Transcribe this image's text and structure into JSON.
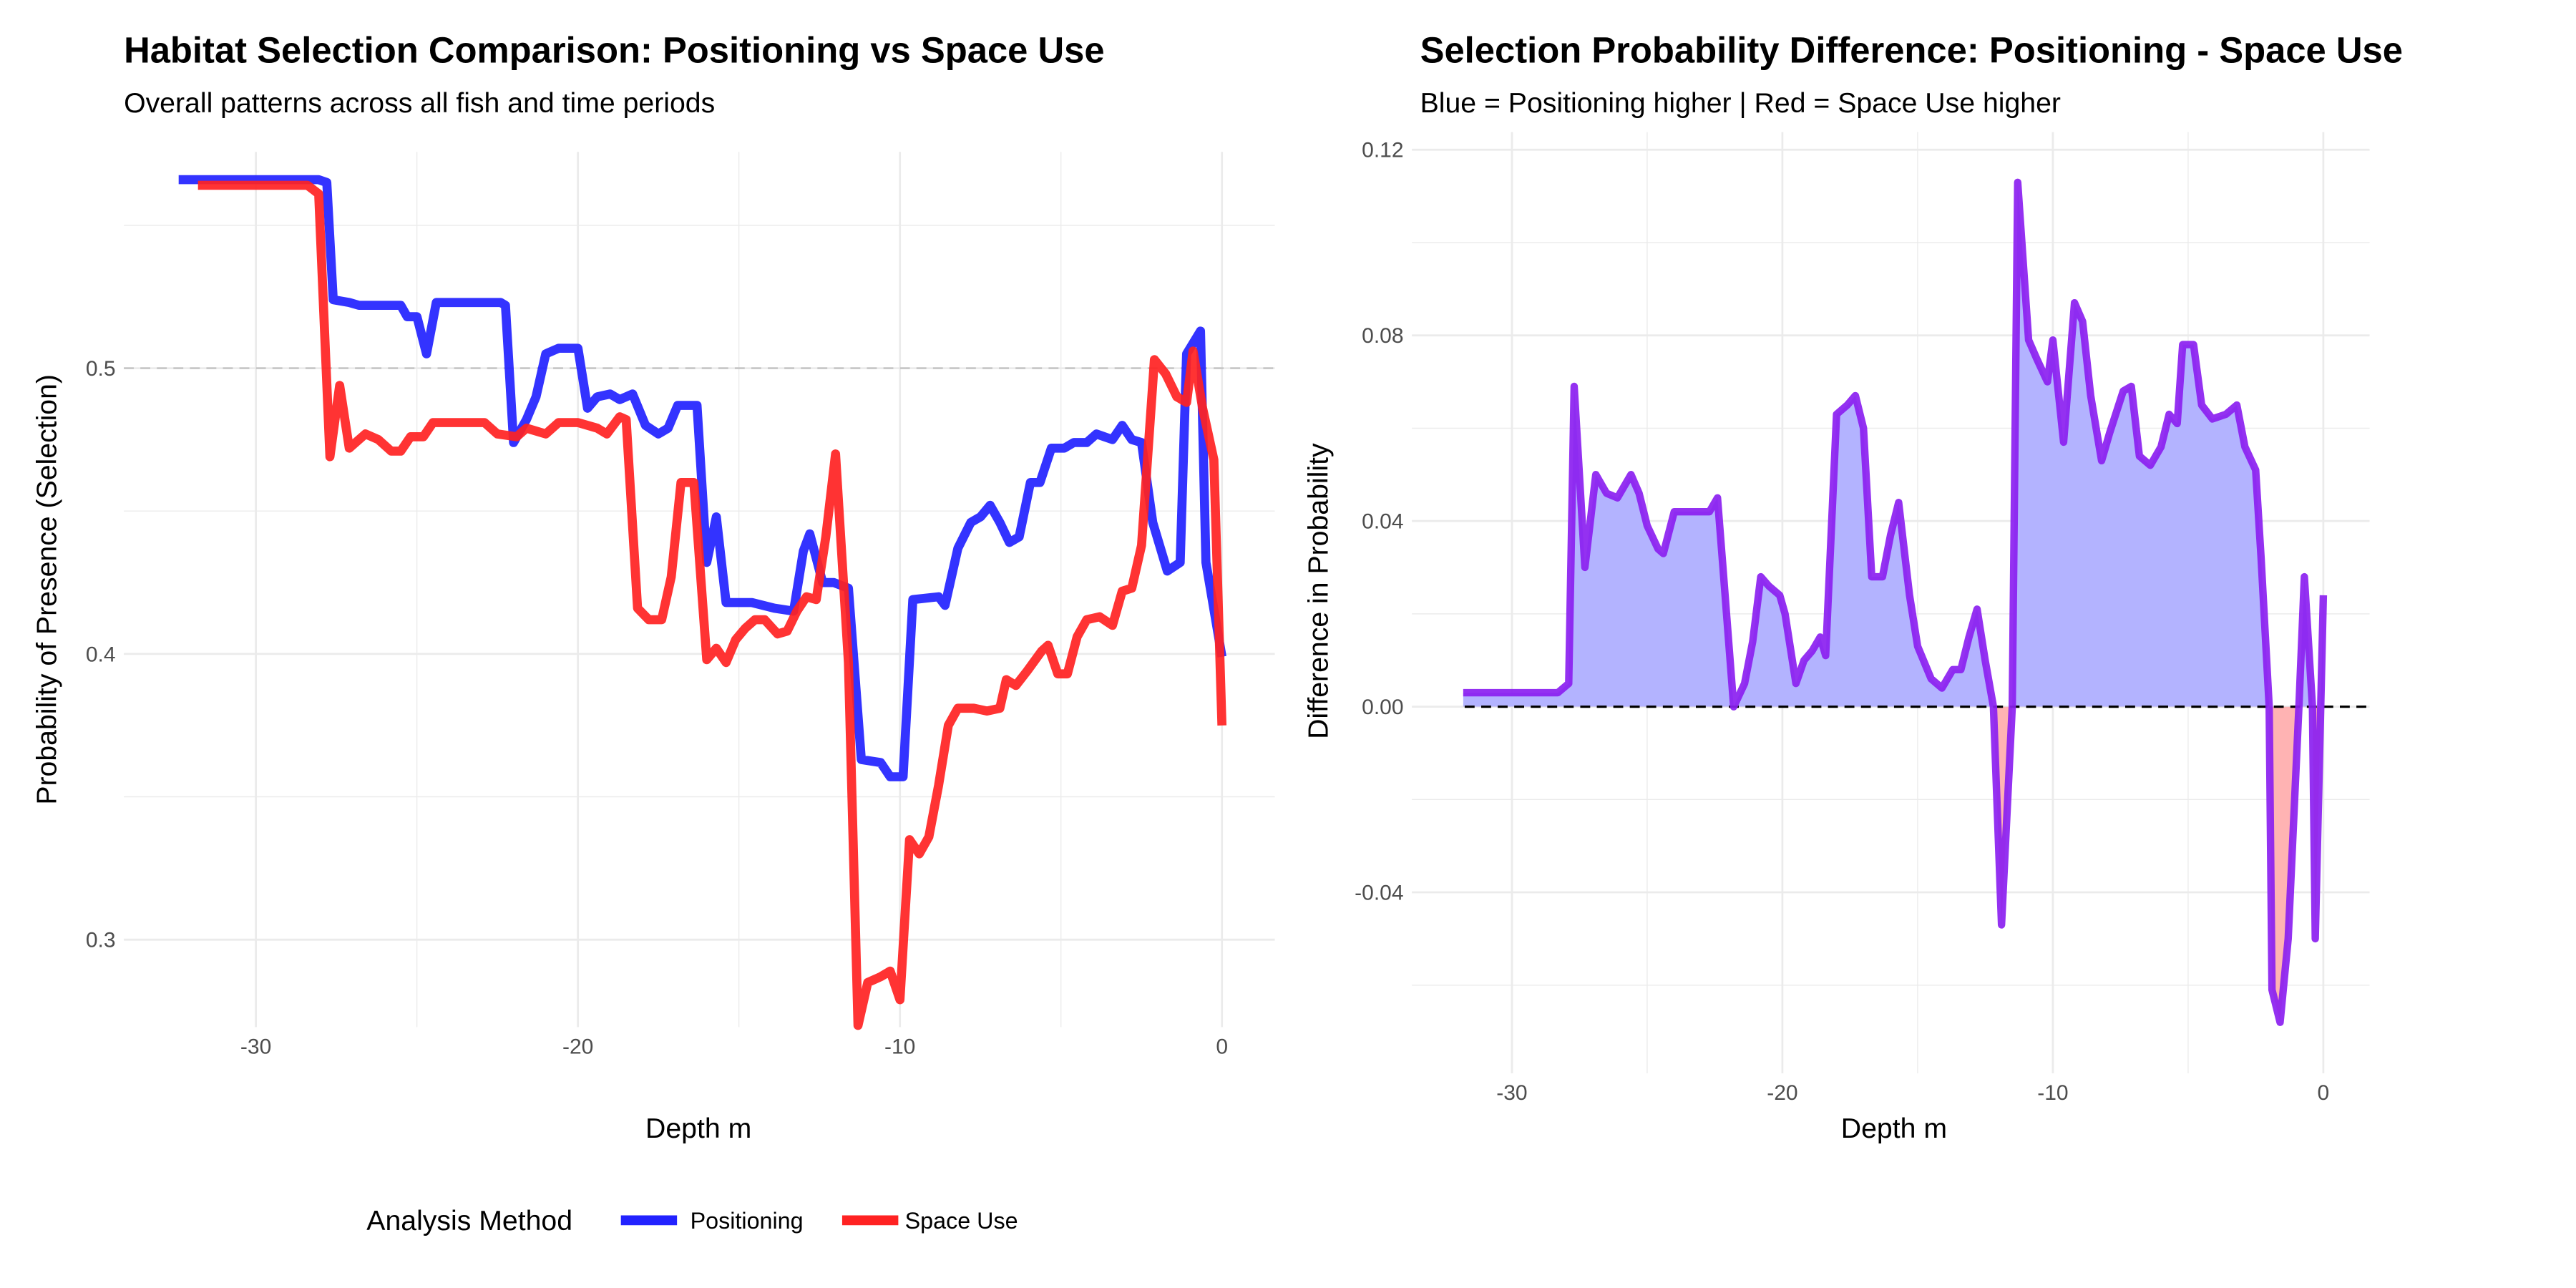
{
  "colors": {
    "positioning": "#2222ff",
    "space_use": "#ff2222",
    "diff_line": "#8b1ff0",
    "fill_pos": "#b3b3ff",
    "fill_neg": "#ffb3b3",
    "grid": "#ebebeb"
  },
  "chart_data": [
    {
      "type": "line",
      "title": "Habitat Selection Comparison: Positioning vs Space Use",
      "subtitle": "Overall patterns across all fish and time periods",
      "xlabel": "Depth m",
      "ylabel": "Probability of Presence (Selection)",
      "xlim": [
        -34.1,
        1.64
      ],
      "ylim": [
        0.2694,
        0.5757
      ],
      "xticks": [
        -30,
        -20,
        -10,
        0
      ],
      "xtick_labels": [
        "-30",
        "-20",
        "-10",
        "0"
      ],
      "yticks": [
        0.3,
        0.4,
        0.5
      ],
      "ytick_labels": [
        "0.3",
        "0.4",
        "0.5"
      ],
      "reference_line": 0.5,
      "legend": {
        "title": "Analysis Method",
        "position": "bottom",
        "entries": [
          "Positioning",
          "Space Use"
        ]
      },
      "series": [
        {
          "name": "Positioning",
          "points": [
            [
              -32.4,
              0.566
            ],
            [
              -28.05,
              0.566
            ],
            [
              -27.8,
              0.565
            ],
            [
              -27.6,
              0.524
            ],
            [
              -27.1,
              0.523
            ],
            [
              -26.8,
              0.522
            ],
            [
              -26.05,
              0.522
            ],
            [
              -25.5,
              0.522
            ],
            [
              -25.3,
              0.518
            ],
            [
              -25.0,
              0.518
            ],
            [
              -24.7,
              0.505
            ],
            [
              -24.4,
              0.523
            ],
            [
              -22.4,
              0.523
            ],
            [
              -22.25,
              0.522
            ],
            [
              -22.0,
              0.474
            ],
            [
              -21.6,
              0.482
            ],
            [
              -21.3,
              0.49
            ],
            [
              -21.0,
              0.505
            ],
            [
              -20.6,
              0.507
            ],
            [
              -20.0,
              0.507
            ],
            [
              -19.7,
              0.486
            ],
            [
              -19.4,
              0.49
            ],
            [
              -19.0,
              0.491
            ],
            [
              -18.7,
              0.489
            ],
            [
              -18.3,
              0.491
            ],
            [
              -17.9,
              0.48
            ],
            [
              -17.5,
              0.477
            ],
            [
              -17.2,
              0.479
            ],
            [
              -16.9,
              0.487
            ],
            [
              -16.3,
              0.487
            ],
            [
              -16.0,
              0.432
            ],
            [
              -15.7,
              0.448
            ],
            [
              -15.4,
              0.418
            ],
            [
              -14.6,
              0.418
            ],
            [
              -13.9,
              0.416
            ],
            [
              -13.3,
              0.415
            ],
            [
              -13.0,
              0.436
            ],
            [
              -12.8,
              0.442
            ],
            [
              -12.4,
              0.425
            ],
            [
              -12.05,
              0.425
            ],
            [
              -11.6,
              0.423
            ],
            [
              -11.2,
              0.363
            ],
            [
              -10.6,
              0.362
            ],
            [
              -10.3,
              0.357
            ],
            [
              -9.9,
              0.357
            ],
            [
              -9.6,
              0.419
            ],
            [
              -8.8,
              0.42
            ],
            [
              -8.6,
              0.417
            ],
            [
              -8.2,
              0.437
            ],
            [
              -7.8,
              0.446
            ],
            [
              -7.5,
              0.448
            ],
            [
              -7.2,
              0.452
            ],
            [
              -6.9,
              0.446
            ],
            [
              -6.6,
              0.439
            ],
            [
              -6.3,
              0.441
            ],
            [
              -5.95,
              0.46
            ],
            [
              -5.65,
              0.46
            ],
            [
              -5.3,
              0.472
            ],
            [
              -4.9,
              0.472
            ],
            [
              -4.6,
              0.474
            ],
            [
              -4.2,
              0.474
            ],
            [
              -3.9,
              0.477
            ],
            [
              -3.4,
              0.475
            ],
            [
              -3.1,
              0.48
            ],
            [
              -2.8,
              0.475
            ],
            [
              -2.5,
              0.474
            ],
            [
              -2.15,
              0.446
            ],
            [
              -1.7,
              0.429
            ],
            [
              -1.3,
              0.432
            ],
            [
              -1.1,
              0.505
            ],
            [
              -0.67,
              0.513
            ],
            [
              -0.5,
              0.432
            ],
            [
              0,
              0.399
            ]
          ]
        },
        {
          "name": "Space Use",
          "points": [
            [
              -31.8,
              0.564
            ],
            [
              -28.4,
              0.564
            ],
            [
              -28.05,
              0.561
            ],
            [
              -27.7,
              0.469
            ],
            [
              -27.4,
              0.494
            ],
            [
              -27.1,
              0.472
            ],
            [
              -26.6,
              0.477
            ],
            [
              -26.2,
              0.475
            ],
            [
              -25.8,
              0.471
            ],
            [
              -25.5,
              0.471
            ],
            [
              -25.2,
              0.476
            ],
            [
              -24.8,
              0.476
            ],
            [
              -24.5,
              0.481
            ],
            [
              -22.9,
              0.481
            ],
            [
              -22.5,
              0.477
            ],
            [
              -21.9,
              0.476
            ],
            [
              -21.6,
              0.479
            ],
            [
              -21.0,
              0.477
            ],
            [
              -20.6,
              0.481
            ],
            [
              -20.0,
              0.481
            ],
            [
              -19.4,
              0.479
            ],
            [
              -19.1,
              0.477
            ],
            [
              -18.7,
              0.483
            ],
            [
              -18.5,
              0.482
            ],
            [
              -18.15,
              0.416
            ],
            [
              -17.8,
              0.412
            ],
            [
              -17.4,
              0.412
            ],
            [
              -17.1,
              0.427
            ],
            [
              -16.8,
              0.46
            ],
            [
              -16.4,
              0.46
            ],
            [
              -16.0,
              0.398
            ],
            [
              -15.7,
              0.402
            ],
            [
              -15.4,
              0.397
            ],
            [
              -15.1,
              0.405
            ],
            [
              -14.8,
              0.409
            ],
            [
              -14.5,
              0.412
            ],
            [
              -14.2,
              0.412
            ],
            [
              -13.8,
              0.407
            ],
            [
              -13.5,
              0.408
            ],
            [
              -13.2,
              0.415
            ],
            [
              -12.9,
              0.42
            ],
            [
              -12.6,
              0.419
            ],
            [
              -12.3,
              0.441
            ],
            [
              -12.0,
              0.47
            ],
            [
              -11.6,
              0.397
            ],
            [
              -11.3,
              0.27
            ],
            [
              -11.0,
              0.285
            ],
            [
              -10.6,
              0.287
            ],
            [
              -10.3,
              0.289
            ],
            [
              -10.0,
              0.279
            ],
            [
              -9.7,
              0.335
            ],
            [
              -9.4,
              0.33
            ],
            [
              -9.1,
              0.336
            ],
            [
              -8.8,
              0.354
            ],
            [
              -8.5,
              0.375
            ],
            [
              -8.2,
              0.381
            ],
            [
              -7.7,
              0.381
            ],
            [
              -7.3,
              0.38
            ],
            [
              -6.9,
              0.381
            ],
            [
              -6.7,
              0.391
            ],
            [
              -6.4,
              0.389
            ],
            [
              -6.05,
              0.394
            ],
            [
              -5.6,
              0.401
            ],
            [
              -5.4,
              0.403
            ],
            [
              -5.1,
              0.393
            ],
            [
              -4.8,
              0.393
            ],
            [
              -4.5,
              0.406
            ],
            [
              -4.2,
              0.412
            ],
            [
              -3.8,
              0.413
            ],
            [
              -3.4,
              0.41
            ],
            [
              -3.1,
              0.422
            ],
            [
              -2.8,
              0.423
            ],
            [
              -2.5,
              0.438
            ],
            [
              -2.1,
              0.503
            ],
            [
              -1.75,
              0.498
            ],
            [
              -1.4,
              0.49
            ],
            [
              -1.1,
              0.488
            ],
            [
              -0.9,
              0.506
            ],
            [
              -0.6,
              0.486
            ],
            [
              -0.25,
              0.468
            ],
            [
              0,
              0.375
            ]
          ]
        }
      ]
    },
    {
      "type": "area",
      "title": "Selection Probability Difference: Positioning - Space Use",
      "subtitle": "Blue = Positioning higher | Red = Space Use higher",
      "xlabel": "Depth m",
      "ylabel": "Difference in Probability",
      "xlim": [
        -33.7,
        1.71
      ],
      "ylim": [
        -0.079,
        0.1238
      ],
      "xticks": [
        -30,
        -20,
        -10,
        0
      ],
      "xtick_labels": [
        "-30",
        "-20",
        "-10",
        "0"
      ],
      "yticks": [
        -0.04,
        0,
        0.04,
        0.08,
        0.12
      ],
      "ytick_labels": [
        "-0.04",
        "0.00",
        "0.04",
        "0.08",
        "0.12"
      ],
      "reference_line": 0,
      "series": [
        {
          "name": "Positioning - Space Use",
          "points": [
            [
              -31.8,
              0.003
            ],
            [
              -28.3,
              0.003
            ],
            [
              -27.9,
              0.005
            ],
            [
              -27.7,
              0.069
            ],
            [
              -27.3,
              0.03
            ],
            [
              -26.9,
              0.05
            ],
            [
              -26.5,
              0.046
            ],
            [
              -26.1,
              0.045
            ],
            [
              -25.6,
              0.05
            ],
            [
              -25.3,
              0.046
            ],
            [
              -25.0,
              0.039
            ],
            [
              -24.6,
              0.034
            ],
            [
              -24.4,
              0.033
            ],
            [
              -24.0,
              0.042
            ],
            [
              -22.7,
              0.042
            ],
            [
              -22.4,
              0.045
            ],
            [
              -22.2,
              0.03
            ],
            [
              -21.8,
              0.0
            ],
            [
              -21.4,
              0.005
            ],
            [
              -21.1,
              0.014
            ],
            [
              -20.8,
              0.028
            ],
            [
              -20.5,
              0.026
            ],
            [
              -20.1,
              0.024
            ],
            [
              -19.9,
              0.02
            ],
            [
              -19.5,
              0.005
            ],
            [
              -19.2,
              0.01
            ],
            [
              -18.9,
              0.012
            ],
            [
              -18.6,
              0.015
            ],
            [
              -18.4,
              0.011
            ],
            [
              -18.0,
              0.063
            ],
            [
              -17.6,
              0.065
            ],
            [
              -17.3,
              0.067
            ],
            [
              -17.0,
              0.06
            ],
            [
              -16.7,
              0.028
            ],
            [
              -16.3,
              0.028
            ],
            [
              -16.0,
              0.037
            ],
            [
              -15.7,
              0.044
            ],
            [
              -15.3,
              0.024
            ],
            [
              -15.0,
              0.013
            ],
            [
              -14.5,
              0.006
            ],
            [
              -14.1,
              0.004
            ],
            [
              -13.7,
              0.008
            ],
            [
              -13.4,
              0.008
            ],
            [
              -13.1,
              0.015
            ],
            [
              -12.8,
              0.021
            ],
            [
              -12.5,
              0.01
            ],
            [
              -12.2,
              0.0
            ],
            [
              -11.9,
              -0.047
            ],
            [
              -11.5,
              0.0
            ],
            [
              -11.3,
              0.113
            ],
            [
              -10.9,
              0.079
            ],
            [
              -10.6,
              0.075
            ],
            [
              -10.2,
              0.07
            ],
            [
              -10.0,
              0.079
            ],
            [
              -9.6,
              0.057
            ],
            [
              -9.2,
              0.087
            ],
            [
              -8.9,
              0.083
            ],
            [
              -8.6,
              0.067
            ],
            [
              -8.2,
              0.053
            ],
            [
              -7.9,
              0.059
            ],
            [
              -7.4,
              0.068
            ],
            [
              -7.1,
              0.069
            ],
            [
              -6.8,
              0.054
            ],
            [
              -6.4,
              0.052
            ],
            [
              -6.0,
              0.056
            ],
            [
              -5.7,
              0.063
            ],
            [
              -5.4,
              0.061
            ],
            [
              -5.2,
              0.078
            ],
            [
              -4.8,
              0.078
            ],
            [
              -4.5,
              0.065
            ],
            [
              -4.1,
              0.062
            ],
            [
              -3.6,
              0.063
            ],
            [
              -3.2,
              0.065
            ],
            [
              -2.9,
              0.056
            ],
            [
              -2.5,
              0.051
            ],
            [
              -2.3,
              0.032
            ],
            [
              -2.0,
              0.0
            ],
            [
              -1.9,
              -0.061
            ],
            [
              -1.6,
              -0.068
            ],
            [
              -1.3,
              -0.05
            ],
            [
              -0.9,
              0.0
            ],
            [
              -0.7,
              0.028
            ],
            [
              -0.4,
              0.0
            ],
            [
              -0.3,
              -0.05
            ],
            [
              0,
              0.024
            ]
          ]
        }
      ]
    }
  ]
}
